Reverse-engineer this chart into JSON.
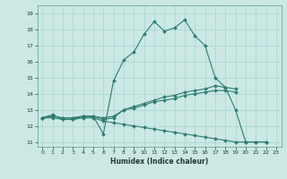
{
  "title": "",
  "xlabel": "Humidex (Indice chaleur)",
  "bg_color": "#cbe8e4",
  "line_color": "#2e7d6e",
  "grid_color": "#a8d5cf",
  "xlim": [
    -0.5,
    23.5
  ],
  "ylim": [
    10.7,
    19.5
  ],
  "yticks": [
    11,
    12,
    13,
    14,
    15,
    16,
    17,
    18,
    19
  ],
  "xticks": [
    0,
    1,
    2,
    3,
    4,
    5,
    6,
    7,
    8,
    9,
    10,
    11,
    12,
    13,
    14,
    15,
    16,
    17,
    18,
    19,
    20,
    21,
    22,
    23
  ],
  "series": [
    {
      "x": [
        0,
        1,
        2,
        3,
        4,
        5,
        6,
        7,
        8,
        9,
        10,
        11,
        12,
        13,
        14,
        15,
        16,
        17,
        18,
        19,
        20,
        21,
        22
      ],
      "y": [
        12.5,
        12.7,
        12.4,
        12.4,
        12.6,
        12.6,
        11.5,
        14.8,
        16.1,
        16.6,
        17.7,
        18.5,
        17.9,
        18.1,
        18.6,
        17.6,
        17.0,
        15.0,
        14.4,
        13.0,
        11.0,
        11.0,
        11.0
      ]
    },
    {
      "x": [
        0,
        1,
        2,
        3,
        4,
        5,
        6,
        7,
        8,
        9,
        10,
        11,
        12,
        13,
        14,
        15,
        16,
        17,
        18,
        19
      ],
      "y": [
        12.5,
        12.6,
        12.5,
        12.5,
        12.6,
        12.6,
        12.5,
        12.6,
        13.0,
        13.2,
        13.4,
        13.6,
        13.8,
        13.9,
        14.1,
        14.2,
        14.3,
        14.5,
        14.4,
        14.3
      ]
    },
    {
      "x": [
        0,
        1,
        2,
        3,
        4,
        5,
        6,
        7,
        8,
        9,
        10,
        11,
        12,
        13,
        14,
        15,
        16,
        17,
        18,
        19
      ],
      "y": [
        12.5,
        12.6,
        12.5,
        12.5,
        12.6,
        12.6,
        12.4,
        12.5,
        13.0,
        13.1,
        13.3,
        13.5,
        13.6,
        13.7,
        13.9,
        14.0,
        14.1,
        14.2,
        14.2,
        14.1
      ]
    },
    {
      "x": [
        0,
        1,
        2,
        3,
        4,
        5,
        6,
        7,
        8,
        9,
        10,
        11,
        12,
        13,
        14,
        15,
        16,
        17,
        18,
        19,
        20,
        21,
        22
      ],
      "y": [
        12.5,
        12.5,
        12.4,
        12.4,
        12.5,
        12.5,
        12.3,
        12.2,
        12.1,
        12.0,
        11.9,
        11.8,
        11.7,
        11.6,
        11.5,
        11.4,
        11.3,
        11.2,
        11.1,
        11.0,
        11.0,
        11.0,
        11.0
      ]
    }
  ]
}
